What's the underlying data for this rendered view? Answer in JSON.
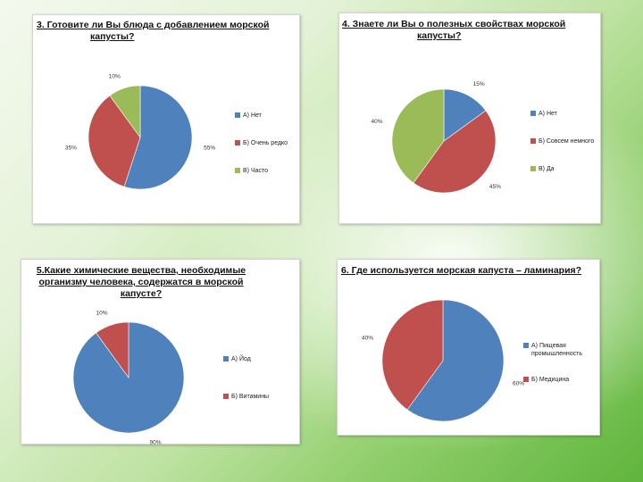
{
  "colors": {
    "blue": "#4f81bd",
    "red": "#c0504d",
    "green": "#9bbb59"
  },
  "chart_data": [
    {
      "type": "pie",
      "title_lines": [
        "3. Готовите ли Вы блюда с добавлением морской",
        "капусты?"
      ],
      "slices": [
        {
          "label": "А) Нет",
          "value": 55,
          "value_label": "55%",
          "color": "#4f81bd"
        },
        {
          "label": "Б) Очень редко",
          "value": 35,
          "value_label": "35%",
          "color": "#c0504d"
        },
        {
          "label": "В) Часто",
          "value": 10,
          "value_label": "10%",
          "color": "#9bbb59"
        }
      ],
      "legend_position": "right"
    },
    {
      "type": "pie",
      "title_lines": [
        "4. Знаете ли Вы о полезных свойствах морской",
        "капусты?"
      ],
      "slices": [
        {
          "label": "А) Нет",
          "value": 15,
          "value_label": "15%",
          "color": "#4f81bd"
        },
        {
          "label": "Б) Совсем немного",
          "value": 45,
          "value_label": "45%",
          "color": "#c0504d"
        },
        {
          "label": "В) Да",
          "value": 40,
          "value_label": "40%",
          "color": "#9bbb59"
        }
      ],
      "legend_position": "right"
    },
    {
      "type": "pie",
      "title_lines": [
        "5.Какие химические вещества, необходимые",
        "организму человека, содержатся в морской",
        "капусте?"
      ],
      "slices": [
        {
          "label": "А) Йод",
          "value": 90,
          "value_label": "90%",
          "color": "#4f81bd"
        },
        {
          "label": "Б) Витамины",
          "value": 10,
          "value_label": "10%",
          "color": "#c0504d"
        }
      ],
      "legend_position": "right"
    },
    {
      "type": "pie",
      "title_lines": [
        "6. Где используется морская капуста – ламинария?"
      ],
      "slices": [
        {
          "label": "А) Пищевая промышленность",
          "value": 60,
          "value_label": "60%",
          "color": "#4f81bd"
        },
        {
          "label": "Б) Медицина",
          "value": 40,
          "value_label": "40%",
          "color": "#c0504d"
        }
      ],
      "legend_position": "right"
    }
  ]
}
